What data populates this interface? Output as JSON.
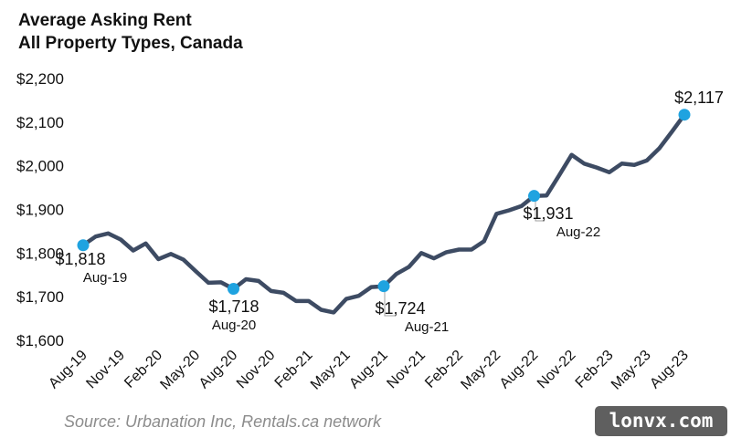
{
  "title_line1": "Average Asking Rent",
  "title_line2": "All Property Types, Canada",
  "source": "Source: Urbanation Inc, Rentals.ca network",
  "watermark": "lonvx.com",
  "colors": {
    "line": "#3d4b63",
    "marker": "#1fa3e0",
    "text": "#111111"
  },
  "chart_data": {
    "type": "line",
    "y_tick_labels": [
      "$1,600",
      "$1,700",
      "$1,800",
      "$1,900",
      "$2,000",
      "$2,100",
      "$2,200"
    ],
    "y_ticks": [
      1600,
      1700,
      1800,
      1900,
      2000,
      2100,
      2200
    ],
    "ylim": [
      1600,
      2200
    ],
    "x_tick_labels": [
      "Aug-19",
      "Nov-19",
      "Feb-20",
      "May-20",
      "Aug-20",
      "Nov-20",
      "Feb-21",
      "May-21",
      "Aug-21",
      "Nov-21",
      "Feb-22",
      "May-22",
      "Aug-22",
      "Nov-22",
      "Feb-23",
      "May-23",
      "Aug-23"
    ],
    "categories": [
      "Aug-19",
      "Sep-19",
      "Oct-19",
      "Nov-19",
      "Dec-19",
      "Jan-20",
      "Feb-20",
      "Mar-20",
      "Apr-20",
      "May-20",
      "Jun-20",
      "Jul-20",
      "Aug-20",
      "Sep-20",
      "Oct-20",
      "Nov-20",
      "Dec-20",
      "Jan-21",
      "Feb-21",
      "Mar-21",
      "Apr-21",
      "May-21",
      "Jun-21",
      "Jul-21",
      "Aug-21",
      "Sep-21",
      "Oct-21",
      "Nov-21",
      "Dec-21",
      "Jan-22",
      "Feb-22",
      "Mar-22",
      "Apr-22",
      "May-22",
      "Jun-22",
      "Jul-22",
      "Aug-22",
      "Sep-22",
      "Oct-22",
      "Nov-22",
      "Dec-22",
      "Jan-23",
      "Feb-23",
      "Mar-23",
      "Apr-23",
      "May-23",
      "Jun-23",
      "Jul-23",
      "Aug-23"
    ],
    "values": [
      1818,
      1838,
      1845,
      1831,
      1806,
      1822,
      1786,
      1798,
      1785,
      1758,
      1732,
      1733,
      1718,
      1740,
      1736,
      1713,
      1709,
      1690,
      1690,
      1670,
      1664,
      1695,
      1702,
      1722,
      1724,
      1752,
      1768,
      1800,
      1788,
      1802,
      1808,
      1808,
      1827,
      1890,
      1898,
      1908,
      1931,
      1932,
      1978,
      2025,
      2005,
      1996,
      1985,
      2005,
      2002,
      2012,
      2040,
      2078,
      2117
    ],
    "highlights": [
      {
        "index": 0,
        "value_label": "$1,818",
        "date_label": "Aug-19"
      },
      {
        "index": 12,
        "value_label": "$1,718",
        "date_label": "Aug-20"
      },
      {
        "index": 24,
        "value_label": "$1,724",
        "date_label": "Aug-21"
      },
      {
        "index": 36,
        "value_label": "$1,931",
        "date_label": "Aug-22"
      },
      {
        "index": 48,
        "value_label": "$2,117",
        "date_label": ""
      }
    ],
    "grid": false,
    "legend": false
  }
}
